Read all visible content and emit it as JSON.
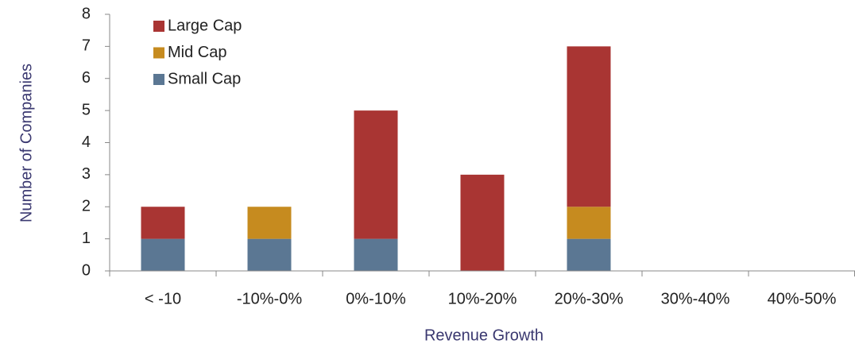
{
  "chart_data": {
    "type": "stacked_bar",
    "x_label": "Revenue Growth",
    "y_label": "Number of Companies",
    "categories": [
      "< -10",
      "-10%-0%",
      "0%-10%",
      "10%-20%",
      "20%-30%",
      "30%-40%",
      "40%-50%"
    ],
    "series": [
      {
        "name": "Small Cap",
        "color": "#5b7793",
        "values": [
          1,
          1,
          1,
          0,
          1,
          0,
          0
        ]
      },
      {
        "name": "Mid Cap",
        "color": "#c68b1f",
        "values": [
          0,
          1,
          0,
          0,
          1,
          0,
          0
        ]
      },
      {
        "name": "Large Cap",
        "color": "#a93533",
        "values": [
          1,
          0,
          4,
          3,
          5,
          0,
          0
        ]
      }
    ],
    "ylim": [
      0,
      8
    ],
    "yticks": [
      0,
      1,
      2,
      3,
      4,
      5,
      6,
      7,
      8
    ],
    "legend": "upper left"
  }
}
